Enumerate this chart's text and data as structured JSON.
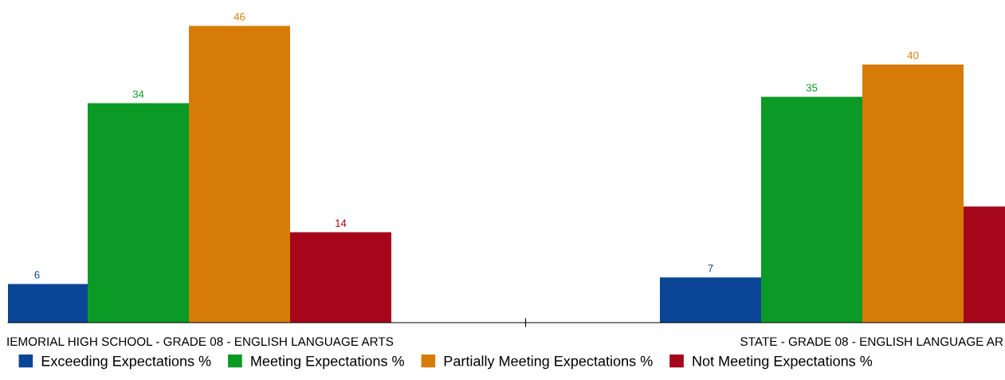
{
  "chart_data": {
    "type": "bar",
    "categories": [
      "IEMORIAL HIGH SCHOOL - GRADE 08 - ENGLISH LANGUAGE ARTS",
      "STATE - GRADE 08 - ENGLISH LANGUAGE AR"
    ],
    "series": [
      {
        "name": "Exceeding Expectations %",
        "color": "#0b4596",
        "values": [
          6,
          7
        ]
      },
      {
        "name": "Meeting Expectations %",
        "color": "#0b9a26",
        "values": [
          34,
          35
        ]
      },
      {
        "name": "Partially Meeting Expectations %",
        "color": "#d67c06",
        "values": [
          46,
          40
        ]
      },
      {
        "name": "Not Meeting Expectations %",
        "color": "#a5061c",
        "values": [
          14,
          18
        ],
        "value_labels": [
          "14",
          null
        ]
      }
    ],
    "data_labels": true,
    "grid": false,
    "legend": "bottom"
  }
}
